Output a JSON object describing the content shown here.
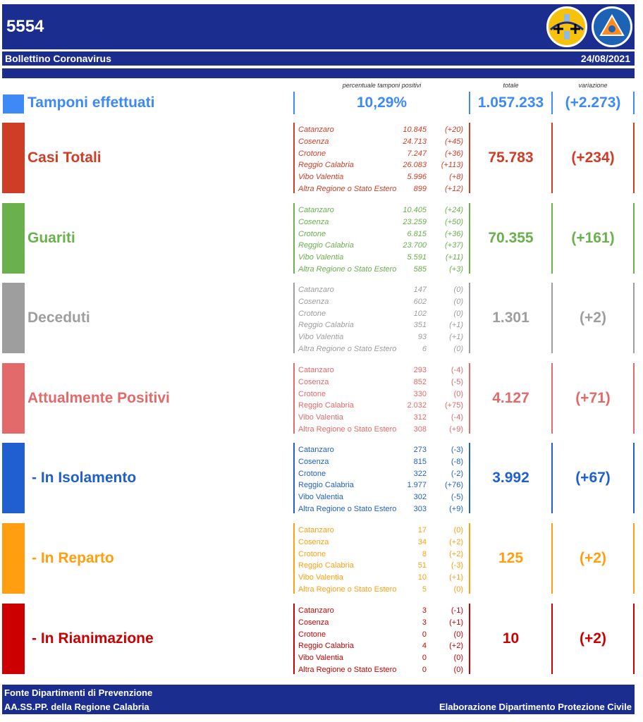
{
  "header": {
    "code": "5554",
    "subtitle": "Bollettino Coronavirus",
    "date": "24/08/2021"
  },
  "tamponi": {
    "label": "Tamponi effettuati",
    "caption_percent": "percentuale tamponi positivi",
    "caption_total": "totale",
    "caption_var": "variazione",
    "percent": "10,29%",
    "total": "1.057.233",
    "var": "(+2.273)",
    "color": "#3d8af7"
  },
  "categories": [
    {
      "name": "Casi Totali",
      "color": "#d03d26",
      "total": "75.783",
      "var": "(+234)",
      "italic": true,
      "sub": false,
      "rows": [
        {
          "prov": "Catanzaro",
          "value": "10.845",
          "delta": "(+20)"
        },
        {
          "prov": "Cosenza",
          "value": "24.713",
          "delta": "(+45)"
        },
        {
          "prov": "Crotone",
          "value": "7.247",
          "delta": "(+36)"
        },
        {
          "prov": "Reggio Calabria",
          "value": "26.083",
          "delta": "(+113)"
        },
        {
          "prov": "Vibo Valentia",
          "value": "5.996",
          "delta": "(+8)"
        },
        {
          "prov": "Altra Regione o Stato Estero",
          "value": "899",
          "delta": "(+12)"
        }
      ]
    },
    {
      "name": "Guariti",
      "color": "#6ab04c",
      "total": "70.355",
      "var": "(+161)",
      "italic": true,
      "sub": false,
      "rows": [
        {
          "prov": "Catanzaro",
          "value": "10.405",
          "delta": "(+24)"
        },
        {
          "prov": "Cosenza",
          "value": "23.259",
          "delta": "(+50)"
        },
        {
          "prov": "Crotone",
          "value": "6.815",
          "delta": "(+36)"
        },
        {
          "prov": "Reggio Calabria",
          "value": "23.700",
          "delta": "(+37)"
        },
        {
          "prov": "Vibo Valentia",
          "value": "5.591",
          "delta": "(+11)"
        },
        {
          "prov": "Altra Regione o Stato Estero",
          "value": "585",
          "delta": "(+3)"
        }
      ]
    },
    {
      "name": "Deceduti",
      "color": "#9e9e9e",
      "total": "1.301",
      "var": "(+2)",
      "italic": true,
      "sub": false,
      "rows": [
        {
          "prov": "Catanzaro",
          "value": "147",
          "delta": "(0)"
        },
        {
          "prov": "Cosenza",
          "value": "602",
          "delta": "(0)"
        },
        {
          "prov": "Crotone",
          "value": "102",
          "delta": "(0)"
        },
        {
          "prov": "Reggio Calabria",
          "value": "351",
          "delta": "(+1)"
        },
        {
          "prov": "Vibo Valentia",
          "value": "93",
          "delta": "(+1)"
        },
        {
          "prov": "Altra Regione o Stato Estero",
          "value": "6",
          "delta": "(0)"
        }
      ]
    },
    {
      "name": "Attualmente Positivi",
      "color": "#e36a6a",
      "total": "4.127",
      "var": "(+71)",
      "italic": false,
      "sub": false,
      "rows": [
        {
          "prov": "Catanzaro",
          "value": "293",
          "delta": "(-4)"
        },
        {
          "prov": "Cosenza",
          "value": "852",
          "delta": "(-5)"
        },
        {
          "prov": "Crotone",
          "value": "330",
          "delta": "(0)"
        },
        {
          "prov": "Reggio Calabria",
          "value": "2.032",
          "delta": "(+75)"
        },
        {
          "prov": "Vibo Valentia",
          "value": "312",
          "delta": "(-4)"
        },
        {
          "prov": "Altra Regione o Stato Estero",
          "value": "308",
          "delta": "(+9)"
        }
      ]
    },
    {
      "name": "- In Isolamento",
      "color": "#1f5fcf",
      "total": "3.992",
      "var": "(+67)",
      "italic": false,
      "sub": true,
      "rows": [
        {
          "prov": "Catanzaro",
          "value": "273",
          "delta": "(-3)"
        },
        {
          "prov": "Cosenza",
          "value": "815",
          "delta": "(-8)"
        },
        {
          "prov": "Crotone",
          "value": "322",
          "delta": "(-2)"
        },
        {
          "prov": "Reggio Calabria",
          "value": "1.977",
          "delta": "(+76)"
        },
        {
          "prov": "Vibo Valentia",
          "value": "302",
          "delta": "(-5)"
        },
        {
          "prov": "Altra Regione o Stato Estero",
          "value": "303",
          "delta": "(+9)"
        }
      ]
    },
    {
      "name": "- In Reparto",
      "color": "#ff9f0f",
      "total": "125",
      "var": "(+2)",
      "italic": false,
      "sub": true,
      "rows": [
        {
          "prov": "Catanzaro",
          "value": "17",
          "delta": "(0)"
        },
        {
          "prov": "Cosenza",
          "value": "34",
          "delta": "(+2)"
        },
        {
          "prov": "Crotone",
          "value": "8",
          "delta": "(+2)"
        },
        {
          "prov": "Reggio Calabria",
          "value": "51",
          "delta": "(-3)"
        },
        {
          "prov": "Vibo Valentia",
          "value": "10",
          "delta": "(+1)"
        },
        {
          "prov": "Altra Regione o Stato Estero",
          "value": "5",
          "delta": "(0)"
        }
      ]
    },
    {
      "name": "- In Rianimazione",
      "color": "#cc0000",
      "total": "10",
      "var": "(+2)",
      "italic": false,
      "sub": true,
      "rows": [
        {
          "prov": "Catanzaro",
          "value": "3",
          "delta": "(-1)"
        },
        {
          "prov": "Cosenza",
          "value": "3",
          "delta": "(+1)"
        },
        {
          "prov": "Crotone",
          "value": "0",
          "delta": "(0)"
        },
        {
          "prov": "Reggio Calabria",
          "value": "4",
          "delta": "(+2)"
        },
        {
          "prov": "Vibo Valentia",
          "value": "0",
          "delta": "(0)"
        },
        {
          "prov": "Altra Regione o Stato Estero",
          "value": "0",
          "delta": "(0)"
        }
      ]
    }
  ],
  "footer": {
    "line1": "Fonte Dipartimenti di Prevenzione",
    "line2": "AA.SS.PP.  della Regione Calabria",
    "credit": "Elaborazione Dipartimento Protezione Civile"
  },
  "logos": {
    "region": "regione-calabria-emblem-icon",
    "civil": "protezione-civile-logo-icon"
  }
}
